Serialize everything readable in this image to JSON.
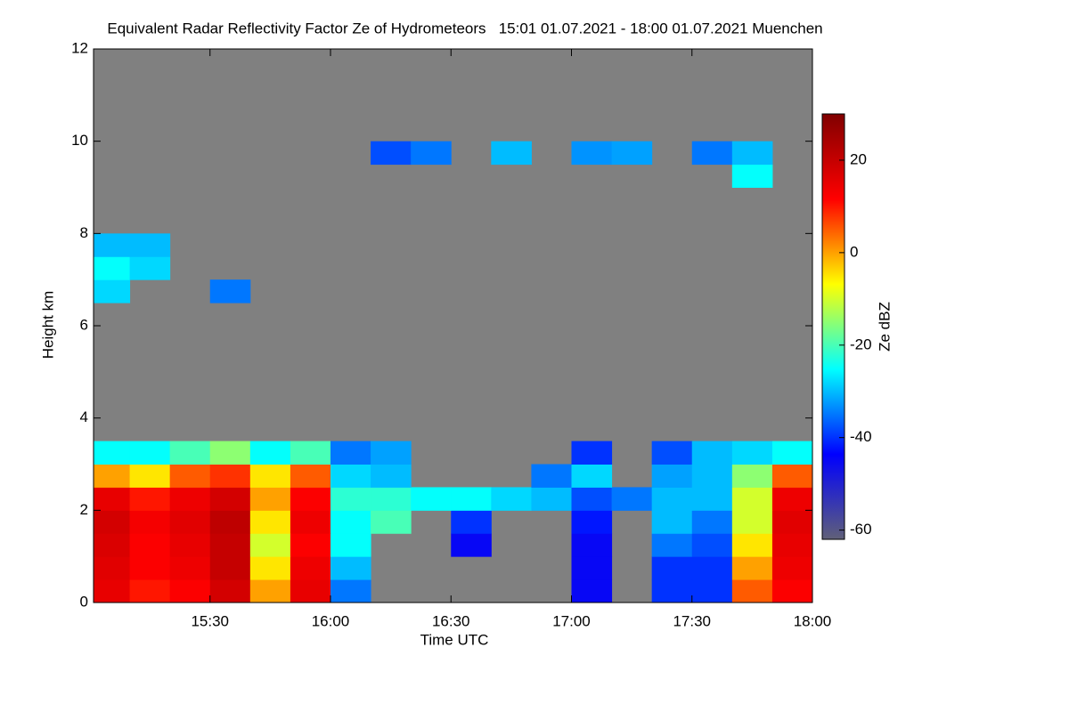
{
  "chart_data": {
    "type": "heatmap",
    "title": "Equivalent Radar Reflectivity Factor Ze of Hydrometeors   15:01 01.07.2021 - 18:00 01.07.2021 Muenchen",
    "x_label": "Time UTC",
    "y_label": "Height km",
    "colorbar_label": "Ze dBZ",
    "xlim": [
      901,
      1080
    ],
    "xticks": [
      {
        "value": 930,
        "label": "15:30"
      },
      {
        "value": 960,
        "label": "16:00"
      },
      {
        "value": 990,
        "label": "16:30"
      },
      {
        "value": 1020,
        "label": "17:00"
      },
      {
        "value": 1050,
        "label": "17:30"
      },
      {
        "value": 1080,
        "label": "18:00"
      }
    ],
    "ylim": [
      0,
      12
    ],
    "yticks": [
      0,
      2,
      4,
      6,
      8,
      10,
      12
    ],
    "zlim": [
      -62,
      30
    ],
    "zticks": [
      -60,
      -40,
      -20,
      0,
      20
    ],
    "colormap": [
      "#606078",
      "#0000ff",
      "#00ffff",
      "#ffff00",
      "#ff0000",
      "#800000"
    ],
    "background_color": "#808080",
    "x": [
      905,
      915,
      925,
      935,
      945,
      955,
      965,
      975,
      985,
      995,
      1005,
      1015,
      1025,
      1035,
      1045,
      1055,
      1065,
      1075
    ],
    "y": [
      0.25,
      0.75,
      1.25,
      1.75,
      2.25,
      2.75,
      3.25,
      3.75,
      4.25,
      4.75,
      5.25,
      5.75,
      6.25,
      6.75,
      7.25,
      7.75,
      8.25,
      8.75,
      9.25,
      9.75,
      10.25,
      10.75,
      11.25,
      11.75
    ],
    "z": [
      [
        15,
        10,
        12,
        18,
        0,
        15,
        -35,
        null,
        null,
        null,
        null,
        null,
        -45,
        null,
        -40,
        -40,
        5,
        12
      ],
      [
        16,
        12,
        14,
        20,
        -5,
        14,
        -30,
        null,
        null,
        null,
        null,
        null,
        -45,
        null,
        -40,
        -40,
        0,
        14
      ],
      [
        17,
        12,
        15,
        20,
        -10,
        12,
        -25,
        null,
        null,
        -45,
        null,
        null,
        -45,
        null,
        -35,
        -38,
        -5,
        15
      ],
      [
        18,
        13,
        16,
        21,
        -5,
        14,
        -25,
        -20,
        null,
        -40,
        null,
        null,
        -42,
        null,
        -30,
        -35,
        -10,
        16
      ],
      [
        15,
        10,
        14,
        18,
        0,
        12,
        -22,
        -22,
        -25,
        -25,
        -28,
        -30,
        -38,
        -35,
        -30,
        -30,
        -10,
        14
      ],
      [
        0,
        -5,
        5,
        8,
        -5,
        5,
        -28,
        -30,
        null,
        null,
        null,
        -35,
        -28,
        null,
        -32,
        -30,
        -15,
        5
      ],
      [
        -25,
        -25,
        -20,
        -15,
        -25,
        -20,
        -35,
        -32,
        null,
        null,
        null,
        null,
        -40,
        null,
        -38,
        -30,
        -28,
        -25
      ],
      [
        null,
        null,
        null,
        null,
        null,
        null,
        null,
        null,
        null,
        null,
        null,
        null,
        null,
        null,
        null,
        null,
        null,
        null
      ],
      [
        null,
        null,
        null,
        null,
        null,
        null,
        null,
        null,
        null,
        null,
        null,
        null,
        null,
        null,
        null,
        null,
        null,
        null
      ],
      [
        null,
        null,
        null,
        null,
        null,
        null,
        null,
        null,
        null,
        null,
        null,
        null,
        null,
        null,
        null,
        null,
        null,
        null
      ],
      [
        null,
        null,
        null,
        null,
        null,
        null,
        null,
        null,
        null,
        null,
        null,
        null,
        null,
        null,
        null,
        null,
        null,
        null
      ],
      [
        null,
        null,
        null,
        null,
        null,
        null,
        null,
        null,
        null,
        null,
        null,
        null,
        null,
        null,
        null,
        null,
        null,
        null
      ],
      [
        null,
        null,
        null,
        null,
        null,
        null,
        null,
        null,
        null,
        null,
        null,
        null,
        null,
        null,
        null,
        null,
        null,
        null
      ],
      [
        -28,
        null,
        null,
        -35,
        null,
        null,
        null,
        null,
        null,
        null,
        null,
        null,
        null,
        null,
        null,
        null,
        null,
        null
      ],
      [
        -25,
        -28,
        null,
        null,
        null,
        null,
        null,
        null,
        null,
        null,
        null,
        null,
        null,
        null,
        null,
        null,
        null,
        null
      ],
      [
        -30,
        -30,
        null,
        null,
        null,
        null,
        null,
        null,
        null,
        null,
        null,
        null,
        null,
        null,
        null,
        null,
        null,
        null
      ],
      [
        null,
        null,
        null,
        null,
        null,
        null,
        null,
        null,
        null,
        null,
        null,
        null,
        null,
        null,
        null,
        null,
        null,
        null
      ],
      [
        null,
        null,
        null,
        null,
        null,
        null,
        null,
        null,
        null,
        null,
        null,
        null,
        null,
        null,
        null,
        null,
        null,
        null
      ],
      [
        null,
        null,
        null,
        null,
        null,
        null,
        null,
        null,
        null,
        null,
        null,
        null,
        null,
        null,
        null,
        null,
        -25,
        null
      ],
      [
        null,
        null,
        null,
        null,
        null,
        null,
        null,
        -38,
        -35,
        null,
        -30,
        null,
        -33,
        -32,
        null,
        -35,
        -30,
        null
      ],
      [
        null,
        null,
        null,
        null,
        null,
        null,
        null,
        null,
        null,
        null,
        null,
        null,
        null,
        null,
        null,
        null,
        null,
        null
      ],
      [
        null,
        null,
        null,
        null,
        null,
        null,
        null,
        null,
        null,
        null,
        null,
        null,
        null,
        null,
        null,
        null,
        null,
        null
      ],
      [
        null,
        null,
        null,
        null,
        null,
        null,
        null,
        null,
        null,
        null,
        null,
        null,
        null,
        null,
        null,
        null,
        null,
        null
      ],
      [
        null,
        null,
        null,
        null,
        null,
        null,
        null,
        null,
        null,
        null,
        null,
        null,
        null,
        null,
        null,
        null,
        null,
        null
      ]
    ]
  }
}
